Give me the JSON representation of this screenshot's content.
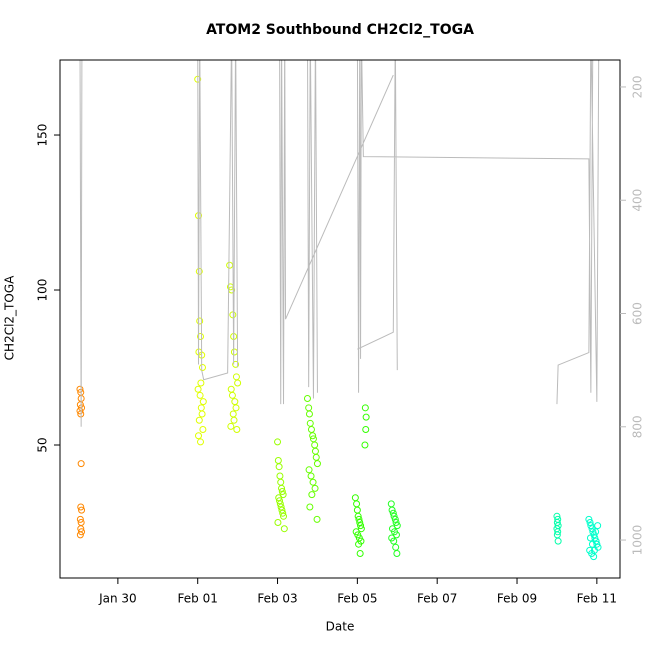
{
  "chart_data": {
    "type": "scatter",
    "title": "ATOM2 Southbound CH2Cl2_TOGA",
    "x_label": "Date",
    "y_label": "CH2Cl2_TOGA",
    "xlim": [
      28.55,
      42.58
    ],
    "xticks": [
      {
        "value": 30,
        "label": "Jan 30"
      },
      {
        "value": 32,
        "label": "Feb 01"
      },
      {
        "value": 34,
        "label": "Feb 03"
      },
      {
        "value": 36,
        "label": "Feb 05"
      },
      {
        "value": 38,
        "label": "Feb 07"
      },
      {
        "value": 40,
        "label": "Feb 09"
      },
      {
        "value": 42,
        "label": "Feb 11"
      }
    ],
    "ylim": [
      7.1,
      174.2
    ],
    "yticks": [
      50,
      100,
      150
    ],
    "y2lim": [
      1067,
      152.4
    ],
    "y2ticks": [
      200,
      400,
      600,
      800,
      1000
    ],
    "series": [
      {
        "color": "#ff8800",
        "x": [
          29.05,
          29.07,
          29.08,
          29.06,
          29.09,
          29.07,
          29.05,
          29.08,
          29.07,
          29.09,
          29.06,
          29.08,
          29.07,
          29.09,
          29.06
        ],
        "values": [
          68,
          67,
          65,
          63,
          62,
          60,
          61,
          44,
          30,
          29,
          26,
          25,
          23,
          22,
          21
        ]
      },
      {
        "color": "#e0ff00",
        "x": [
          32.0,
          32.02,
          32.04,
          32.05,
          32.07,
          32.03,
          32.1,
          32.12,
          32.08,
          32.01,
          32.06,
          32.14,
          32.09,
          32.11,
          32.04,
          32.13,
          32.02,
          32.07
        ],
        "values": [
          168,
          124,
          106,
          90,
          85,
          80,
          79,
          75,
          70,
          68,
          66,
          64,
          62,
          60,
          58,
          55,
          53,
          51
        ]
      },
      {
        "color": "#d0ff00",
        "x": [
          32.8,
          32.82,
          32.85,
          32.88,
          32.9,
          32.92,
          32.95,
          32.97,
          33.0,
          32.84,
          32.87,
          32.93,
          32.96,
          32.89,
          32.91,
          32.83,
          32.98
        ],
        "values": [
          108,
          101,
          100,
          92,
          85,
          80,
          76,
          72,
          70,
          68,
          66,
          64,
          62,
          60,
          58,
          56,
          55
        ]
      },
      {
        "color": "#99ff00",
        "x": [
          34.0,
          34.02,
          34.04,
          34.06,
          34.08,
          34.1,
          34.12,
          34.14,
          34.03,
          34.05,
          34.07,
          34.09,
          34.11,
          34.13,
          34.15,
          34.01,
          34.17
        ],
        "values": [
          51,
          45,
          43,
          40,
          38,
          36,
          35,
          34,
          33,
          32,
          31,
          30,
          29,
          28,
          27,
          25,
          23
        ]
      },
      {
        "color": "#66ff00",
        "x": [
          34.75,
          34.78,
          34.8,
          34.82,
          34.85,
          34.88,
          34.9,
          34.93,
          34.95,
          34.97,
          35.0,
          34.79,
          34.84,
          34.89,
          34.94,
          34.86,
          34.81,
          34.99
        ],
        "values": [
          65,
          62,
          60,
          57,
          55,
          53,
          52,
          50,
          48,
          46,
          44,
          42,
          40,
          38,
          36,
          34,
          30,
          26
        ]
      },
      {
        "color": "#33ff00",
        "x": [
          35.95,
          35.98,
          36.0,
          36.02,
          36.04,
          36.06,
          36.08,
          36.1,
          35.97,
          36.01,
          36.05,
          36.09,
          36.03,
          36.07,
          36.2,
          36.22,
          36.21,
          36.19
        ],
        "values": [
          33,
          31,
          29,
          27,
          26,
          25,
          24,
          23,
          22,
          21,
          20,
          19,
          18,
          15,
          62,
          59,
          55,
          50
        ]
      },
      {
        "color": "#22ff22",
        "x": [
          36.85,
          36.87,
          36.9,
          36.92,
          36.95,
          36.97,
          37.0,
          36.88,
          36.93,
          36.98,
          36.86,
          36.91,
          36.96,
          36.99
        ],
        "values": [
          31,
          29,
          28,
          27,
          26,
          25,
          24,
          23,
          22,
          21,
          20,
          19,
          17,
          15
        ]
      },
      {
        "color": "#00ffaa",
        "x": [
          41.0,
          41.02,
          41.01,
          41.03,
          41.0,
          41.02,
          41.01,
          41.03
        ],
        "values": [
          27,
          26,
          25,
          24,
          23,
          22,
          21,
          19
        ]
      },
      {
        "color": "#00ffcc",
        "x": [
          41.8,
          41.83,
          41.85,
          41.88,
          41.9,
          41.93,
          41.95,
          41.98,
          42.0,
          42.03,
          41.82,
          41.87,
          41.92,
          41.97,
          42.02,
          41.84,
          41.89,
          41.94
        ],
        "values": [
          26,
          25,
          24,
          23,
          22,
          21,
          20,
          19,
          18,
          17,
          16,
          15,
          14,
          22,
          24,
          20,
          18,
          16
        ]
      },
      {
        "type": "line",
        "axis": "y2",
        "color": "#bbbbbb",
        "x": [
          29.05,
          29.08,
          29.1,
          null,
          32.0,
          32.02,
          32.05,
          32.1,
          32.15,
          32.75,
          32.85,
          32.9,
          32.95,
          33.0,
          null,
          34.05,
          34.08,
          34.1,
          34.15,
          34.18,
          34.2,
          36.9,
          null,
          34.75,
          34.78,
          34.82,
          34.9,
          34.95,
          35.0,
          null,
          36.0,
          36.03,
          36.06,
          36.08,
          36.1,
          36.15,
          41.8,
          41.85,
          41.9,
          null,
          36.0,
          36.9,
          36.95,
          37.0,
          null,
          41.0,
          41.03,
          41.8,
          41.85,
          42.0,
          42.05
        ],
        "values": [
          100,
          800,
          100,
          null,
          100,
          690,
          100,
          700,
          717,
          705,
          100,
          690,
          100,
          695,
          null,
          100,
          760,
          100,
          760,
          100,
          610,
          179,
          null,
          100,
          730,
          100,
          750,
          100,
          740,
          null,
          100,
          740,
          100,
          680,
          100,
          323,
          327,
          740,
          100,
          null,
          663,
          633,
          100,
          700,
          null,
          760,
          691,
          669,
          100,
          756,
          100
        ]
      }
    ]
  }
}
